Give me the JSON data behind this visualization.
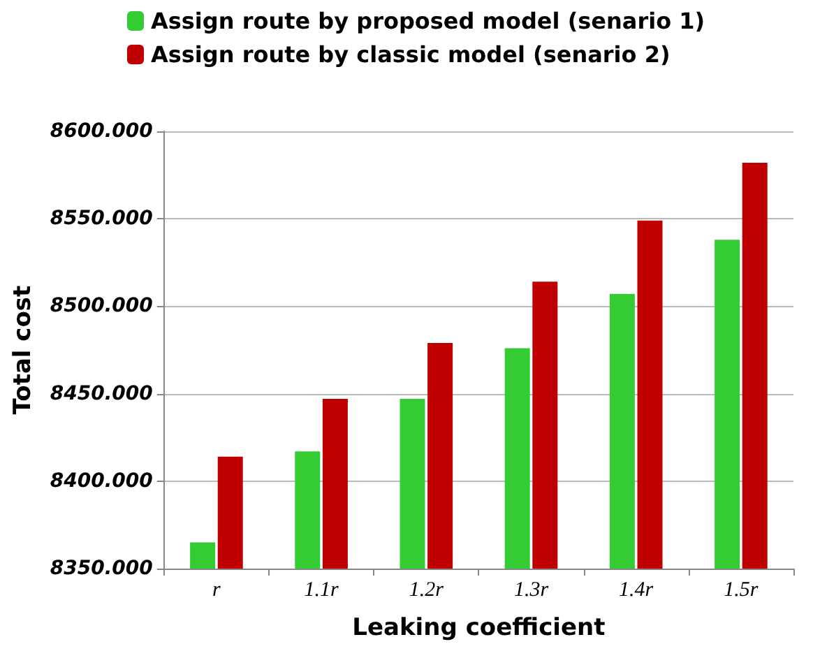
{
  "chart_data": {
    "type": "bar",
    "xlabel": "Leaking coefficient",
    "ylabel": "Total cost",
    "categories": [
      "r",
      "1.1r",
      "1.2r",
      "1.3r",
      "1.4r",
      "1.5r"
    ],
    "series": [
      {
        "name": "Assign route by proposed model (senario 1)",
        "color": "#33cc33",
        "values": [
          8365,
          8417,
          8447,
          8476,
          8507,
          8538
        ]
      },
      {
        "name": "Assign route by classic model (senario 2)",
        "color": "#c00000",
        "values": [
          8414,
          8447,
          8479,
          8514,
          8549,
          8582
        ]
      }
    ],
    "ylim": [
      8350,
      8600
    ],
    "yticks": [
      {
        "value": 8350,
        "label": "8350.000"
      },
      {
        "value": 8400,
        "label": "8400.000"
      },
      {
        "value": 8450,
        "label": "8450.000"
      },
      {
        "value": 8500,
        "label": "8500.000"
      },
      {
        "value": 8550,
        "label": "8550.000"
      },
      {
        "value": 8600,
        "label": "8600.000"
      }
    ],
    "grid": "y",
    "legend": "top left"
  }
}
